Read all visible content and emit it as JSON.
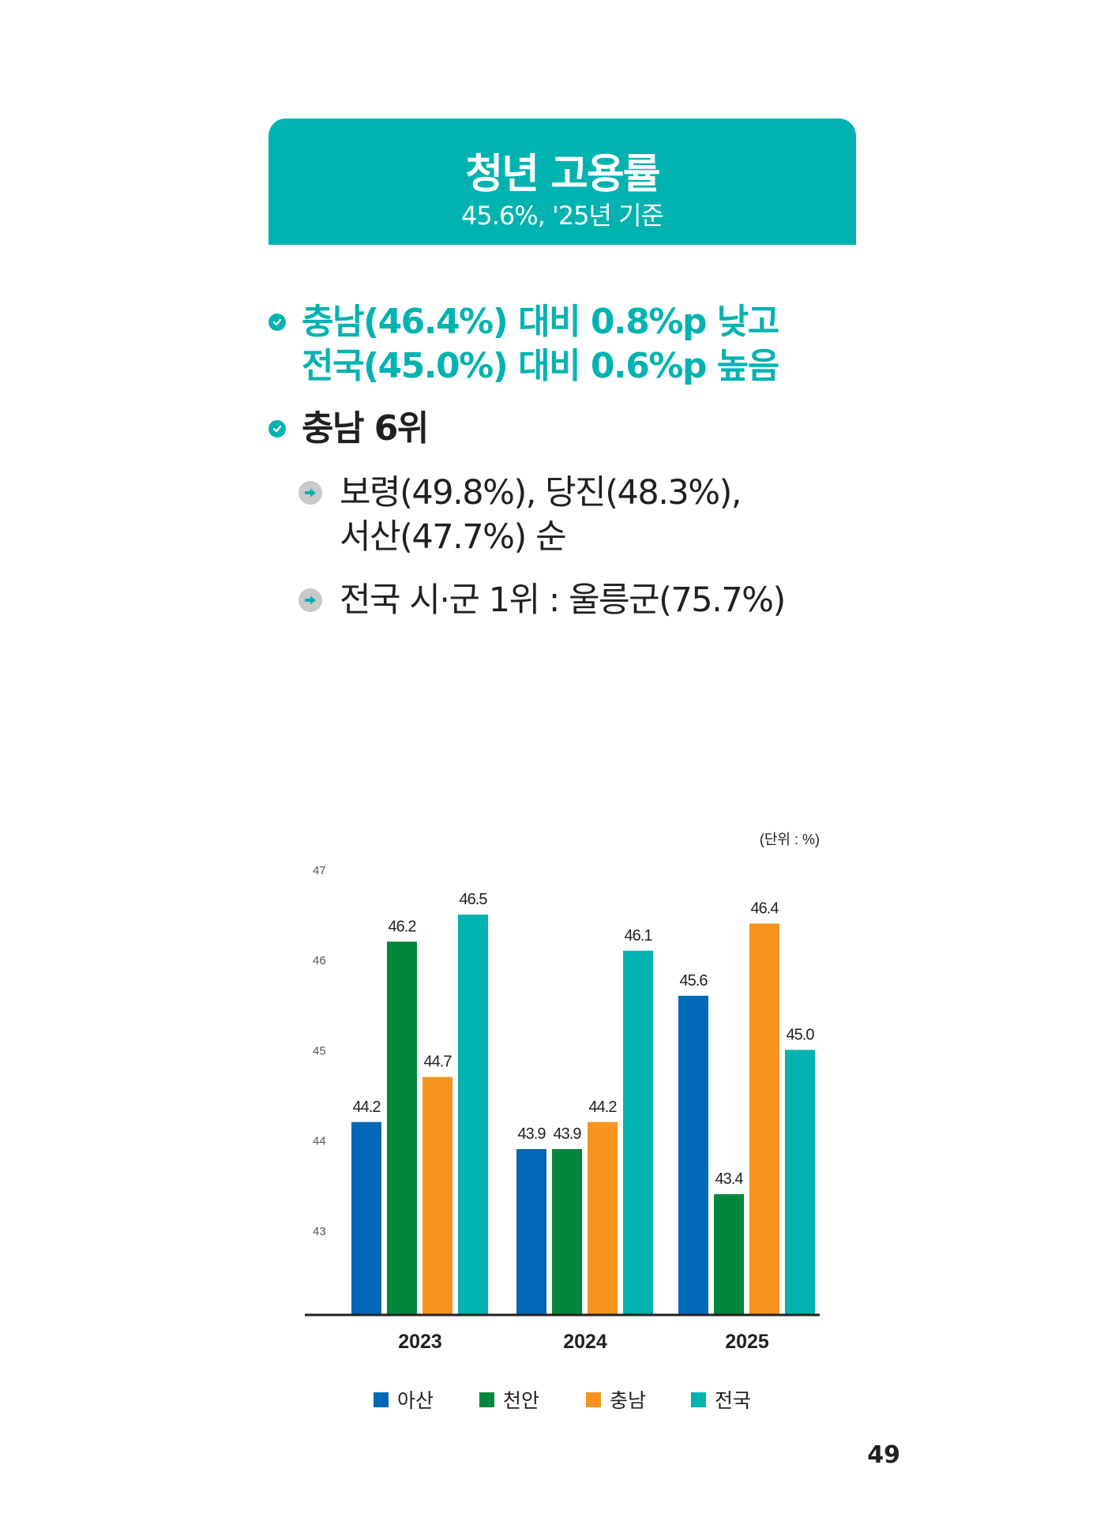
{
  "header": {
    "title": "청년 고용률",
    "subtitle": "45.6%, '25년 기준"
  },
  "bullets": [
    {
      "lines": [
        "충남(46.4%) 대비 0.8%p 낮고",
        "전국(45.0%) 대비 0.6%p 높음"
      ]
    },
    {
      "lines": [
        "충남 6위"
      ]
    }
  ],
  "sub_bullets": [
    {
      "lines": [
        "보령(49.8%), 당진(48.3%),",
        "서산(47.7%) 순"
      ]
    },
    {
      "lines": [
        "전국 시·군 1위 : 울릉군(75.7%)"
      ]
    }
  ],
  "page_number": "49",
  "chart_data": {
    "type": "bar",
    "unit_label": "(단위 : %)",
    "categories": [
      "2023",
      "2024",
      "2025"
    ],
    "y_ticks": [
      "47",
      "46",
      "45",
      "44",
      "43"
    ],
    "ylim": [
      42.07,
      47
    ],
    "grid": false,
    "legend_position": "bottom",
    "series": [
      {
        "name": "아산",
        "color": "#0068b7",
        "values": [
          44.2,
          43.9,
          45.6
        ],
        "labels": [
          "44.2",
          "43.9",
          "45.6"
        ]
      },
      {
        "name": "천안",
        "color": "#00873c",
        "values": [
          46.2,
          43.9,
          43.4
        ],
        "labels": [
          "46.2",
          "43.9",
          "43.4"
        ]
      },
      {
        "name": "충남",
        "color": "#f7931e",
        "values": [
          44.7,
          44.2,
          46.4
        ],
        "labels": [
          "44.7",
          "44.2",
          "46.4"
        ]
      },
      {
        "name": "전국",
        "color": "#00b3b0",
        "values": [
          46.5,
          46.1,
          45.0
        ],
        "labels": [
          "46.5",
          "46.1",
          "45.0"
        ]
      }
    ]
  }
}
